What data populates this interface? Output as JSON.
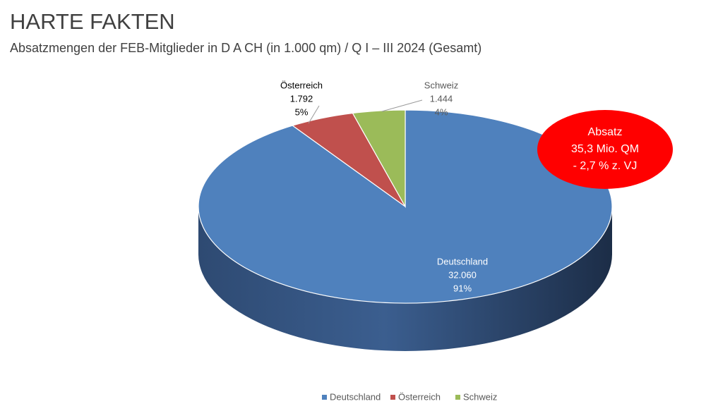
{
  "chart_data": {
    "type": "pie3d",
    "title": "HARTE FAKTEN",
    "subtitle": "Absatzmengen der FEB-Mitglieder in D A CH (in 1.000 qm) / Q I – III 2024 (Gesamt)",
    "categories": [
      "Deutschland",
      "Österreich",
      "Schweiz"
    ],
    "values": [
      32060,
      1792,
      1444
    ],
    "value_labels": [
      "32.060",
      "1.792",
      "1.444"
    ],
    "percent_labels": [
      "91%",
      "5%",
      "4%"
    ],
    "colors": [
      "#4f81bd",
      "#c0504d",
      "#9bbb59"
    ],
    "annotation": [
      "Absatz",
      "35,3 Mio. QM",
      "- 2,7 % z. VJ"
    ],
    "legend": "bottom"
  }
}
